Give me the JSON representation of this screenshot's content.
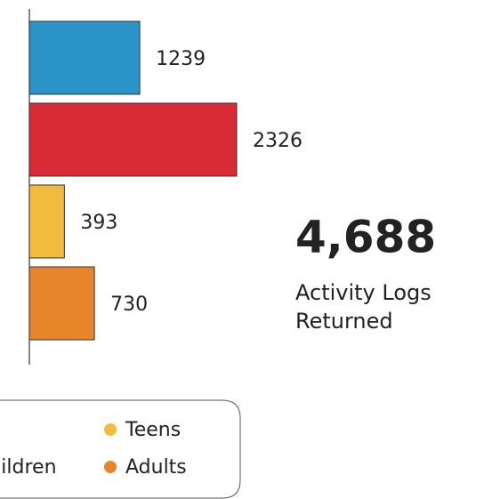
{
  "chart_data": {
    "type": "bar",
    "orientation": "horizontal",
    "categories": [
      null,
      "Children",
      "Teens",
      "Adults"
    ],
    "values": [
      1239,
      2326,
      393,
      730
    ],
    "colors": [
      "#2a94c9",
      "#d92b35",
      "#f1bc3e",
      "#e6852a"
    ],
    "legend": "bottom"
  },
  "summary": {
    "value": "4,688",
    "label_lines": [
      "Activity Logs",
      "Returned"
    ]
  }
}
